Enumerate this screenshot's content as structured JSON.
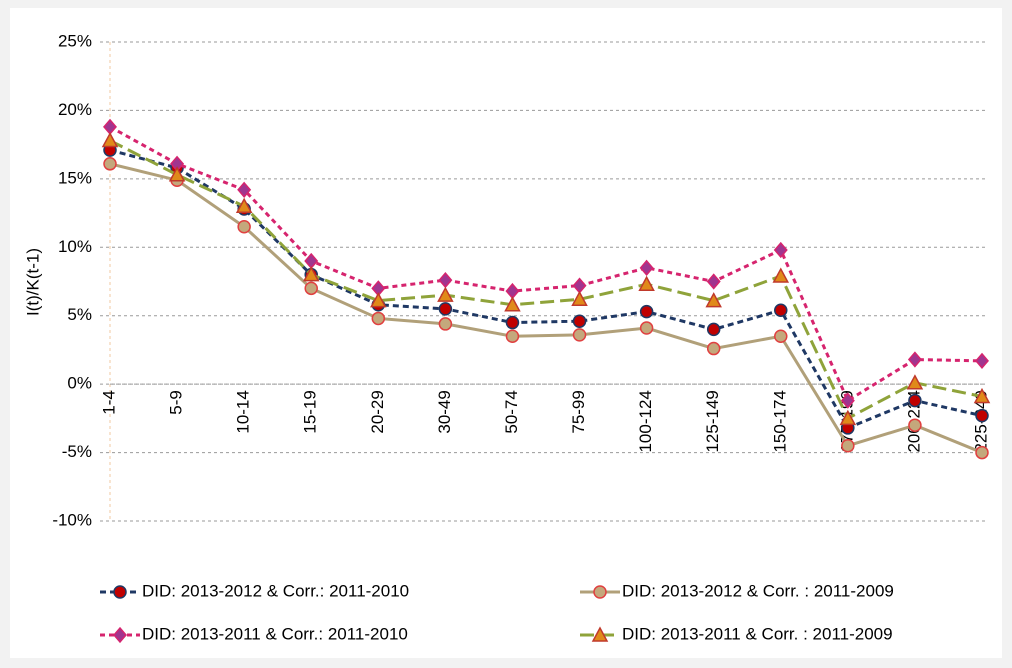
{
  "chart_data": {
    "type": "line",
    "y_label": "I(t)/K(t-1)",
    "categories": [
      "1-4",
      "5-9",
      "10-14",
      "15-19",
      "20-29",
      "30-49",
      "50-74",
      "75-99",
      "100-124",
      "125-149",
      "150-174",
      "175-199",
      "200-224",
      "225-249"
    ],
    "ylim": [
      -10,
      25
    ],
    "yticks": [
      {
        "value": -10,
        "label": "-10%"
      },
      {
        "value": -5,
        "label": "-5%"
      },
      {
        "value": 0,
        "label": "0%"
      },
      {
        "value": 5,
        "label": "5%"
      },
      {
        "value": 10,
        "label": "10%"
      },
      {
        "value": 15,
        "label": "15%"
      },
      {
        "value": 20,
        "label": "20%"
      },
      {
        "value": 25,
        "label": "25%"
      }
    ],
    "grid": true,
    "series": [
      {
        "name": "DID:  2013-2012 & Corr.:  2011-2010",
        "color": "#1f3864",
        "dash": "6,4",
        "marker": "circle",
        "marker_color": "#c00000",
        "marker_edge": "#1f3864",
        "values": [
          17.1,
          15.8,
          12.8,
          8.0,
          5.8,
          5.5,
          4.5,
          4.6,
          5.3,
          4.0,
          5.4,
          -3.2,
          -1.2,
          -2.3
        ]
      },
      {
        "name": "DID:  2013-2012 & Corr. : 2011-2009",
        "color": "#b1a079",
        "dash": "",
        "marker": "circle",
        "marker_color": "#c4a87c",
        "marker_edge": "#e04040",
        "values": [
          16.1,
          14.9,
          11.5,
          7.0,
          4.8,
          4.4,
          3.5,
          3.6,
          4.1,
          2.6,
          3.5,
          -4.5,
          -3.0,
          -5.0
        ]
      },
      {
        "name": "DID: 2013-2011 & Corr.:  2011-2010",
        "color": "#d6246e",
        "dash": "5,4",
        "marker": "diamond",
        "marker_color": "#a0358f",
        "marker_edge": "#d6246e",
        "values": [
          18.8,
          16.1,
          14.2,
          9.0,
          7.0,
          7.6,
          6.8,
          7.2,
          8.5,
          7.5,
          9.8,
          -1.2,
          1.8,
          1.7
        ]
      },
      {
        "name": "DID: 2013-2011 & Corr. : 2011-2009",
        "color": "#8fa33a",
        "dash": "14,6",
        "marker": "triangle",
        "marker_color": "#e08a1a",
        "marker_edge": "#c0392b",
        "values": [
          17.8,
          15.3,
          13.0,
          8.0,
          6.1,
          6.5,
          5.8,
          6.2,
          7.3,
          6.1,
          7.9,
          -2.5,
          0.1,
          -0.9
        ]
      }
    ]
  }
}
